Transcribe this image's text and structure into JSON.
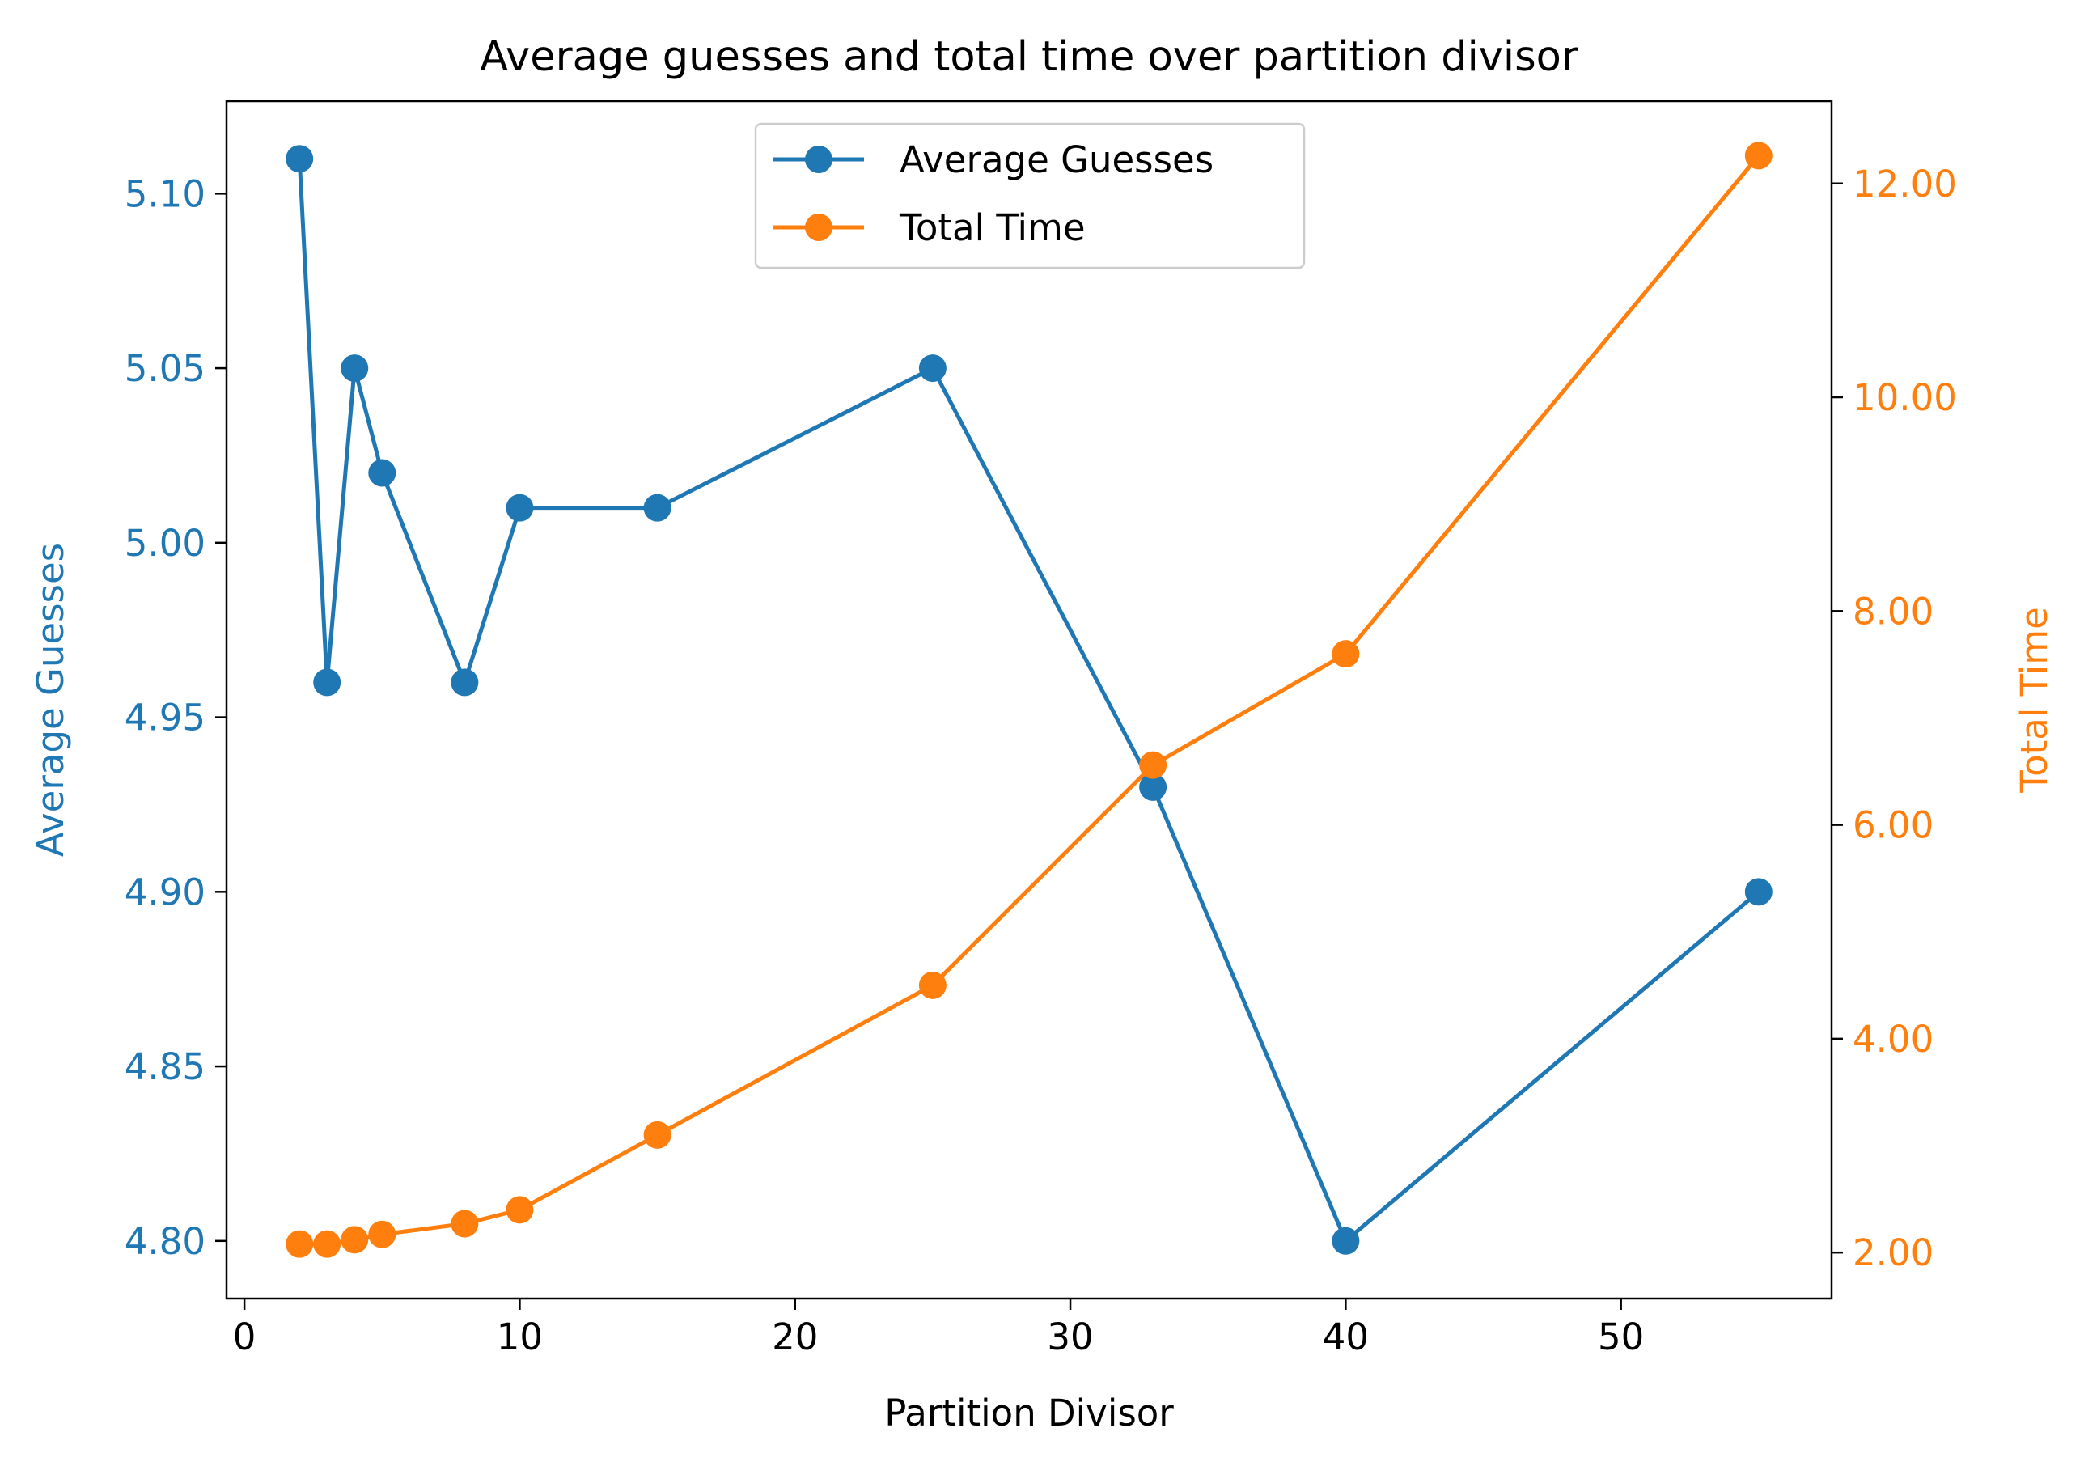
{
  "chart_data": {
    "type": "line",
    "title": "Average guesses and total time over partition divisor",
    "xlabel": "Partition Divisor",
    "ylabel_left": "Average Guesses",
    "ylabel_right": "Total Time",
    "x": [
      2,
      3,
      4,
      5,
      8,
      10,
      15,
      25,
      33,
      40,
      55
    ],
    "xlim": [
      -0.65,
      57.65
    ],
    "ylim_left": [
      4.7835,
      5.1265
    ],
    "ylim_right": [
      1.57,
      12.77
    ],
    "x_ticks": [
      0,
      10,
      20,
      30,
      40,
      50
    ],
    "x_tick_labels": [
      "0",
      "10",
      "20",
      "30",
      "40",
      "50"
    ],
    "y_left_ticks": [
      4.8,
      4.85,
      4.9,
      4.95,
      5.0,
      5.05,
      5.1
    ],
    "y_left_tick_labels": [
      "4.80",
      "4.85",
      "4.90",
      "4.95",
      "5.00",
      "5.05",
      "5.10"
    ],
    "y_right_ticks": [
      2,
      4,
      6,
      8,
      10,
      12
    ],
    "y_right_tick_labels": [
      "2.00",
      "4.00",
      "6.00",
      "8.00",
      "10.00",
      "12.00"
    ],
    "grid": false,
    "legend_position": "upper-center",
    "series": [
      {
        "name": "Average Guesses",
        "axis": "left",
        "color": "#1f77b4",
        "values": [
          5.11,
          4.96,
          5.05,
          5.02,
          4.96,
          5.01,
          5.01,
          5.05,
          4.93,
          4.8,
          4.9
        ]
      },
      {
        "name": "Total Time",
        "axis": "right",
        "color": "#ff7f0e",
        "values": [
          2.08,
          2.08,
          2.12,
          2.17,
          2.27,
          2.4,
          3.1,
          4.5,
          6.56,
          7.6,
          12.26
        ]
      }
    ]
  }
}
